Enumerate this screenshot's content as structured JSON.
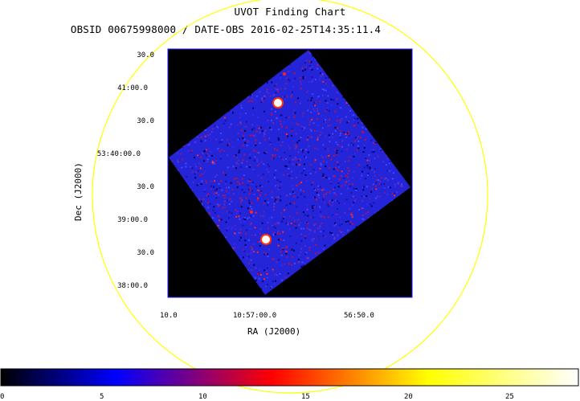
{
  "title": "UVOT Finding Chart",
  "subtitle": "OBSID 00675998000 / DATE-OBS 2016-02-25T14:35:11.4",
  "axes": {
    "xlabel": "RA (J2000)",
    "ylabel": "Dec (J2000)",
    "xticks": [
      "10.0",
      "10:57:00.0",
      "56:50.0"
    ],
    "yticks": [
      "30.0",
      "41:00.0",
      "30.0",
      "53:40:00.0",
      "30.0",
      "39:00.0",
      "30.0",
      "38:00.0"
    ]
  },
  "colorbar": {
    "ticks": [
      "0",
      "5",
      "10",
      "15",
      "20",
      "25"
    ],
    "min": 0,
    "max": 28,
    "colors": [
      "#000000",
      "#0000ff",
      "#ff0000",
      "#ffff00",
      "#ffffff"
    ]
  },
  "colors": {
    "circle": "#ffff00",
    "frame": "#0000aa",
    "field": "#2020e0",
    "background": "#000000"
  }
}
